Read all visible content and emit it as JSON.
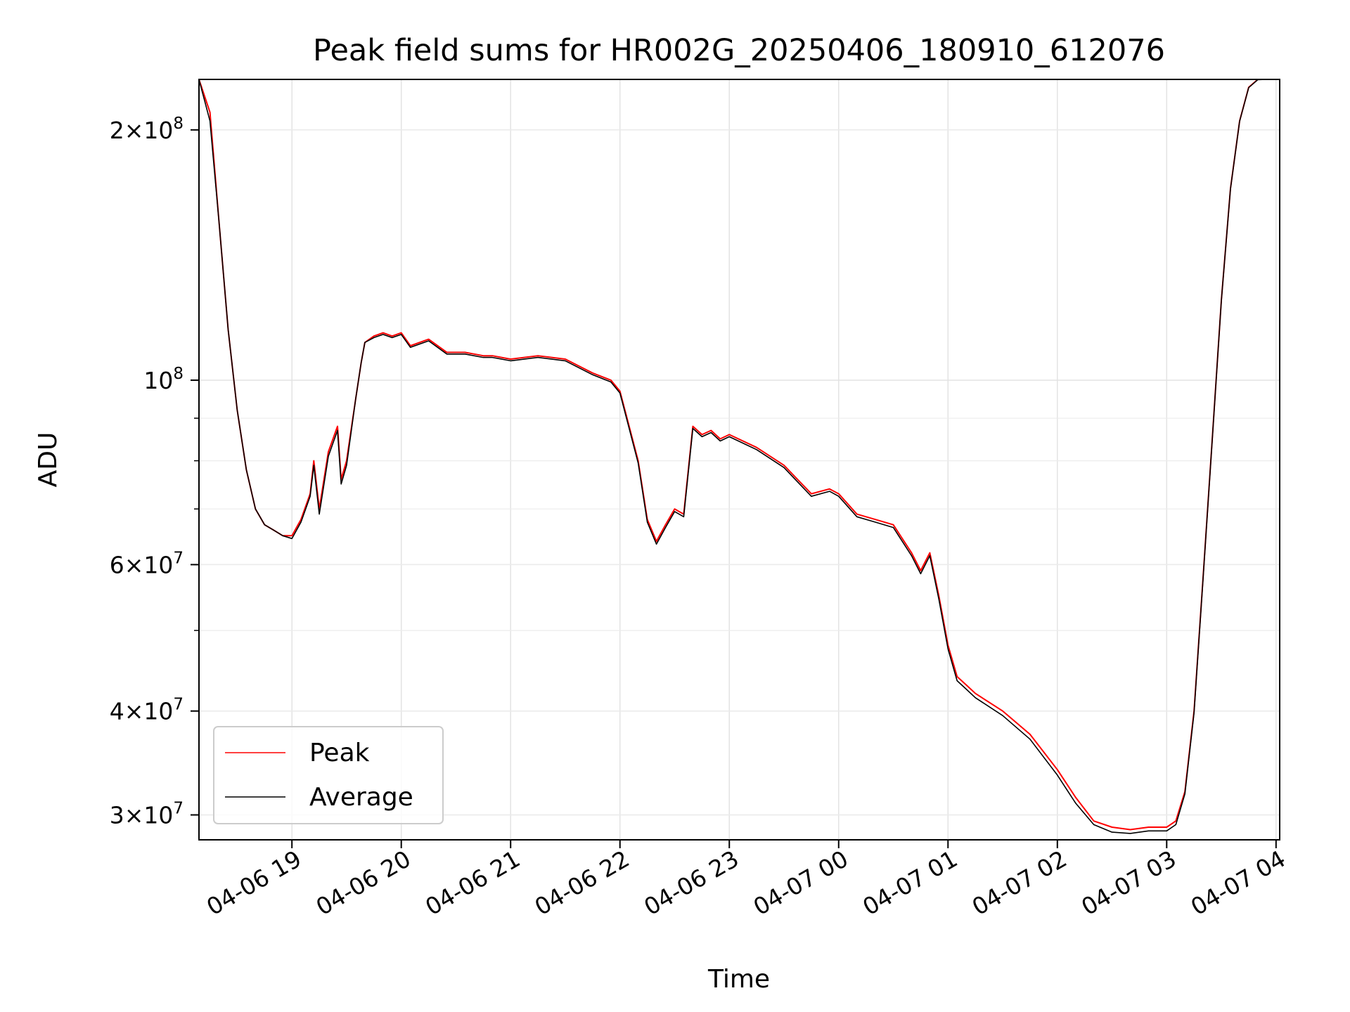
{
  "chart_data": {
    "type": "line",
    "title": "Peak field sums for HR002G_20250406_180910_612076",
    "xlabel": "Time",
    "ylabel": "ADU",
    "yscale": "log",
    "ylim": [
      28000000,
      230000000
    ],
    "xlim": [
      "2025-04-06 18:09",
      "2025-04-07 04:02"
    ],
    "x_ticks": [
      "04-06 19",
      "04-06 20",
      "04-06 21",
      "04-06 22",
      "04-06 23",
      "04-07 00",
      "04-07 01",
      "04-07 02",
      "04-07 03",
      "04-07 04"
    ],
    "y_ticks": [
      {
        "base": "2",
        "exp": "8"
      },
      {
        "base": "",
        "exp": "8"
      },
      {
        "base": "6",
        "exp": "7"
      },
      {
        "base": "4",
        "exp": "7"
      },
      {
        "base": "3",
        "exp": "7"
      }
    ],
    "grid": true,
    "legend": "lower-left",
    "x": [
      "2025-04-06 18:09",
      "2025-04-06 18:15",
      "2025-04-06 18:20",
      "2025-04-06 18:25",
      "2025-04-06 18:30",
      "2025-04-06 18:35",
      "2025-04-06 18:40",
      "2025-04-06 18:45",
      "2025-04-06 18:50",
      "2025-04-06 18:55",
      "2025-04-06 19:00",
      "2025-04-06 19:05",
      "2025-04-06 19:10",
      "2025-04-06 19:12",
      "2025-04-06 19:15",
      "2025-04-06 19:20",
      "2025-04-06 19:25",
      "2025-04-06 19:27",
      "2025-04-06 19:30",
      "2025-04-06 19:35",
      "2025-04-06 19:38",
      "2025-04-06 19:40",
      "2025-04-06 19:45",
      "2025-04-06 19:50",
      "2025-04-06 19:55",
      "2025-04-06 20:00",
      "2025-04-06 20:05",
      "2025-04-06 20:15",
      "2025-04-06 20:25",
      "2025-04-06 20:30",
      "2025-04-06 20:35",
      "2025-04-06 20:45",
      "2025-04-06 20:50",
      "2025-04-06 21:00",
      "2025-04-06 21:15",
      "2025-04-06 21:30",
      "2025-04-06 21:45",
      "2025-04-06 21:55",
      "2025-04-06 22:00",
      "2025-04-06 22:10",
      "2025-04-06 22:15",
      "2025-04-06 22:20",
      "2025-04-06 22:25",
      "2025-04-06 22:30",
      "2025-04-06 22:35",
      "2025-04-06 22:40",
      "2025-04-06 22:45",
      "2025-04-06 22:50",
      "2025-04-06 22:55",
      "2025-04-06 23:00",
      "2025-04-06 23:15",
      "2025-04-06 23:30",
      "2025-04-06 23:45",
      "2025-04-06 23:55",
      "2025-04-07 00:00",
      "2025-04-07 00:10",
      "2025-04-07 00:20",
      "2025-04-07 00:30",
      "2025-04-07 00:40",
      "2025-04-07 00:45",
      "2025-04-07 00:50",
      "2025-04-07 00:55",
      "2025-04-07 01:00",
      "2025-04-07 01:05",
      "2025-04-07 01:10",
      "2025-04-07 01:15",
      "2025-04-07 01:30",
      "2025-04-07 01:45",
      "2025-04-07 02:00",
      "2025-04-07 02:10",
      "2025-04-07 02:20",
      "2025-04-07 02:30",
      "2025-04-07 02:40",
      "2025-04-07 02:50",
      "2025-04-07 03:00",
      "2025-04-07 03:05",
      "2025-04-07 03:10",
      "2025-04-07 03:15",
      "2025-04-07 03:20",
      "2025-04-07 03:25",
      "2025-04-07 03:30",
      "2025-04-07 03:35",
      "2025-04-07 03:40",
      "2025-04-07 03:45",
      "2025-04-07 03:50",
      "2025-04-07 03:55",
      "2025-04-07 04:02"
    ],
    "series": [
      {
        "name": "Peak",
        "color": "#ff0000",
        "values": [
          230000000,
          210000000,
          155000000,
          115000000,
          92000000,
          78000000,
          70000000,
          67000000,
          66000000,
          65000000,
          65000000,
          68000000,
          73000000,
          80000000,
          70000000,
          82000000,
          88000000,
          76000000,
          80000000,
          95000000,
          105000000,
          111000000,
          113000000,
          114000000,
          113000000,
          114000000,
          110000000,
          112000000,
          108000000,
          108000000,
          108000000,
          107000000,
          107000000,
          106000000,
          107000000,
          106000000,
          102000000,
          100000000,
          97000000,
          80000000,
          68000000,
          64000000,
          67000000,
          70000000,
          69000000,
          88000000,
          86000000,
          87000000,
          85000000,
          86000000,
          83000000,
          79000000,
          73000000,
          74000000,
          73000000,
          69000000,
          68000000,
          67000000,
          62000000,
          59000000,
          62000000,
          55000000,
          48000000,
          44000000,
          43000000,
          42000000,
          40000000,
          37500000,
          34000000,
          31500000,
          29500000,
          29000000,
          28800000,
          29000000,
          29000000,
          29500000,
          32000000,
          40000000,
          58000000,
          85000000,
          125000000,
          170000000,
          205000000,
          225000000,
          230000000,
          230000000,
          230000000
        ]
      },
      {
        "name": "Average",
        "color": "#000000",
        "values": [
          230000000,
          205000000,
          155000000,
          115000000,
          92000000,
          78000000,
          70000000,
          67000000,
          66000000,
          65000000,
          64500000,
          67500000,
          72500000,
          79000000,
          69000000,
          81000000,
          87000000,
          75000000,
          79000000,
          95000000,
          105000000,
          111000000,
          112500000,
          113500000,
          112500000,
          113500000,
          109500000,
          111500000,
          107500000,
          107500000,
          107500000,
          106500000,
          106500000,
          105500000,
          106500000,
          105500000,
          101500000,
          99500000,
          96500000,
          79500000,
          67500000,
          63500000,
          66500000,
          69500000,
          68500000,
          87500000,
          85500000,
          86500000,
          84500000,
          85500000,
          82500000,
          78500000,
          72500000,
          73500000,
          72500000,
          68500000,
          67500000,
          66500000,
          61500000,
          58500000,
          61500000,
          54500000,
          47500000,
          43500000,
          42500000,
          41500000,
          39500000,
          37000000,
          33500000,
          31000000,
          29200000,
          28600000,
          28500000,
          28700000,
          28700000,
          29200000,
          31800000,
          39800000,
          57800000,
          84800000,
          124800000,
          169800000,
          204800000,
          224800000,
          229800000,
          230000000,
          230000000
        ]
      }
    ]
  }
}
